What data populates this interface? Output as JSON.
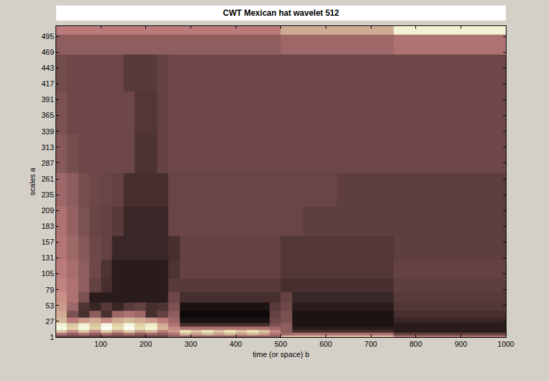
{
  "chart_data": {
    "type": "heatmap",
    "title": "CWT Mexican hat wavelet 512",
    "x_label": "time (or space) b",
    "y_label": "scales a",
    "color": "pink",
    "xlim": [
      1,
      1000
    ],
    "ylim": [
      1,
      512
    ],
    "xticks": [
      100,
      200,
      300,
      400,
      500,
      600,
      700,
      800,
      900,
      1000
    ],
    "yticks": [
      1,
      27,
      53,
      79,
      105,
      131,
      157,
      183,
      209,
      235,
      261,
      287,
      313,
      339,
      365,
      391,
      417,
      443,
      469,
      495
    ],
    "zlim": [
      0,
      1
    ],
    "x": [
      12.5,
      37.5,
      62.5,
      87.5,
      112.5,
      137.5,
      162.5,
      187.5,
      212.5,
      237.5,
      262.5,
      287.5,
      312.5,
      337.5,
      362.5,
      387.5,
      412.5,
      437.5,
      462.5,
      487.5,
      512.5,
      537.5,
      562.5,
      587.5,
      612.5,
      637.5,
      662.5,
      687.5,
      712.5,
      737.5,
      762.5,
      787.5,
      812.5,
      837.5,
      862.5,
      887.5,
      912.5,
      937.5,
      962.5,
      987.5
    ],
    "y": [
      2,
      6,
      10,
      15,
      21,
      28,
      38,
      50,
      65,
      85,
      110,
      145,
      190,
      240,
      300,
      370,
      440,
      490,
      505
    ],
    "z": [
      [
        0.1,
        0.1,
        0.1,
        0.1,
        0.1,
        0.1,
        0.1,
        0.1,
        0.1,
        0.1,
        0.2,
        0.2,
        0.2,
        0.2,
        0.2,
        0.2,
        0.2,
        0.2,
        0.2,
        0.2,
        0.55,
        0.55,
        0.55,
        0.55,
        0.55,
        0.55,
        0.55,
        0.55,
        0.55,
        0.55,
        0.3,
        0.3,
        0.3,
        0.3,
        0.3,
        0.3,
        0.3,
        0.3,
        0.3,
        0.3
      ],
      [
        0.3,
        0.2,
        0.3,
        0.2,
        0.3,
        0.2,
        0.3,
        0.2,
        0.25,
        0.2,
        0.3,
        0.55,
        0.45,
        0.55,
        0.45,
        0.55,
        0.45,
        0.55,
        0.45,
        0.3,
        0.25,
        0.3,
        0.3,
        0.3,
        0.3,
        0.3,
        0.3,
        0.3,
        0.3,
        0.3,
        0.1,
        0.1,
        0.1,
        0.1,
        0.1,
        0.1,
        0.1,
        0.1,
        0.1,
        0.1
      ],
      [
        0.6,
        0.4,
        0.6,
        0.4,
        0.65,
        0.45,
        0.65,
        0.45,
        0.55,
        0.35,
        0.45,
        0.75,
        0.6,
        0.75,
        0.6,
        0.75,
        0.6,
        0.75,
        0.6,
        0.4,
        0.2,
        0.05,
        0.05,
        0.05,
        0.05,
        0.05,
        0.05,
        0.05,
        0.05,
        0.05,
        0.03,
        0.03,
        0.03,
        0.03,
        0.03,
        0.03,
        0.03,
        0.03,
        0.03,
        0.03
      ],
      [
        0.9,
        0.65,
        0.9,
        0.65,
        0.95,
        0.7,
        0.95,
        0.7,
        0.85,
        0.55,
        0.4,
        0.3,
        0.3,
        0.3,
        0.3,
        0.3,
        0.3,
        0.3,
        0.3,
        0.25,
        0.2,
        0.03,
        0.03,
        0.03,
        0.03,
        0.03,
        0.03,
        0.03,
        0.03,
        0.03,
        0.03,
        0.03,
        0.03,
        0.03,
        0.03,
        0.03,
        0.03,
        0.03,
        0.03,
        0.03
      ],
      [
        0.85,
        0.6,
        0.85,
        0.6,
        0.9,
        0.65,
        0.9,
        0.65,
        0.8,
        0.5,
        0.3,
        0.05,
        0.05,
        0.05,
        0.05,
        0.05,
        0.05,
        0.05,
        0.05,
        0.15,
        0.2,
        0.02,
        0.02,
        0.02,
        0.02,
        0.02,
        0.02,
        0.02,
        0.02,
        0.02,
        0.03,
        0.03,
        0.03,
        0.03,
        0.03,
        0.03,
        0.03,
        0.03,
        0.03,
        0.03
      ],
      [
        0.55,
        0.35,
        0.45,
        0.5,
        0.4,
        0.5,
        0.55,
        0.5,
        0.45,
        0.35,
        0.25,
        0.02,
        0.02,
        0.02,
        0.02,
        0.02,
        0.02,
        0.02,
        0.02,
        0.12,
        0.15,
        0.02,
        0.02,
        0.02,
        0.02,
        0.02,
        0.02,
        0.02,
        0.02,
        0.02,
        0.04,
        0.04,
        0.04,
        0.04,
        0.04,
        0.04,
        0.04,
        0.04,
        0.04,
        0.04
      ],
      [
        0.5,
        0.15,
        0.05,
        0.2,
        0.05,
        0.25,
        0.3,
        0.25,
        0.05,
        0.1,
        0.2,
        0.01,
        0.01,
        0.01,
        0.01,
        0.01,
        0.01,
        0.01,
        0.01,
        0.1,
        0.15,
        0.02,
        0.02,
        0.02,
        0.02,
        0.02,
        0.02,
        0.02,
        0.02,
        0.02,
        0.05,
        0.05,
        0.05,
        0.05,
        0.05,
        0.05,
        0.05,
        0.05,
        0.05,
        0.05
      ],
      [
        0.45,
        0.25,
        0.06,
        0.04,
        0.08,
        0.04,
        0.08,
        0.1,
        0.05,
        0.06,
        0.15,
        0.02,
        0.02,
        0.02,
        0.02,
        0.02,
        0.02,
        0.02,
        0.02,
        0.08,
        0.12,
        0.03,
        0.03,
        0.03,
        0.03,
        0.03,
        0.03,
        0.03,
        0.03,
        0.03,
        0.07,
        0.07,
        0.07,
        0.07,
        0.07,
        0.07,
        0.07,
        0.07,
        0.07,
        0.07
      ],
      [
        0.42,
        0.3,
        0.15,
        0.03,
        0.03,
        0.03,
        0.03,
        0.03,
        0.03,
        0.03,
        0.12,
        0.05,
        0.05,
        0.05,
        0.05,
        0.05,
        0.05,
        0.05,
        0.05,
        0.05,
        0.1,
        0.04,
        0.04,
        0.04,
        0.04,
        0.04,
        0.04,
        0.04,
        0.04,
        0.04,
        0.08,
        0.08,
        0.08,
        0.08,
        0.08,
        0.08,
        0.08,
        0.08,
        0.08,
        0.08
      ],
      [
        0.38,
        0.3,
        0.2,
        0.1,
        0.05,
        0.03,
        0.03,
        0.03,
        0.03,
        0.03,
        0.08,
        0.08,
        0.08,
        0.08,
        0.08,
        0.08,
        0.08,
        0.08,
        0.08,
        0.08,
        0.05,
        0.05,
        0.05,
        0.05,
        0.05,
        0.05,
        0.05,
        0.05,
        0.05,
        0.05,
        0.09,
        0.09,
        0.09,
        0.09,
        0.09,
        0.09,
        0.09,
        0.09,
        0.09,
        0.09
      ],
      [
        0.35,
        0.28,
        0.2,
        0.12,
        0.06,
        0.03,
        0.03,
        0.03,
        0.03,
        0.03,
        0.06,
        0.1,
        0.1,
        0.1,
        0.1,
        0.1,
        0.1,
        0.1,
        0.1,
        0.1,
        0.07,
        0.07,
        0.07,
        0.07,
        0.07,
        0.07,
        0.07,
        0.07,
        0.07,
        0.07,
        0.1,
        0.1,
        0.1,
        0.1,
        0.1,
        0.1,
        0.1,
        0.1,
        0.1,
        0.1
      ],
      [
        0.32,
        0.25,
        0.18,
        0.12,
        0.1,
        0.04,
        0.04,
        0.04,
        0.04,
        0.04,
        0.05,
        0.1,
        0.1,
        0.1,
        0.1,
        0.1,
        0.1,
        0.1,
        0.1,
        0.1,
        0.07,
        0.07,
        0.07,
        0.07,
        0.07,
        0.07,
        0.07,
        0.07,
        0.07,
        0.07,
        0.09,
        0.09,
        0.09,
        0.09,
        0.09,
        0.09,
        0.09,
        0.09,
        0.09,
        0.09
      ],
      [
        0.3,
        0.22,
        0.15,
        0.11,
        0.1,
        0.08,
        0.04,
        0.04,
        0.04,
        0.04,
        0.11,
        0.11,
        0.11,
        0.11,
        0.11,
        0.11,
        0.11,
        0.11,
        0.11,
        0.11,
        0.11,
        0.11,
        0.09,
        0.09,
        0.09,
        0.09,
        0.09,
        0.09,
        0.09,
        0.09,
        0.09,
        0.09,
        0.09,
        0.09,
        0.09,
        0.09,
        0.09,
        0.09,
        0.09,
        0.09
      ],
      [
        0.25,
        0.2,
        0.14,
        0.12,
        0.11,
        0.1,
        0.05,
        0.05,
        0.05,
        0.05,
        0.11,
        0.11,
        0.11,
        0.11,
        0.11,
        0.11,
        0.11,
        0.11,
        0.11,
        0.11,
        0.11,
        0.11,
        0.11,
        0.11,
        0.11,
        0.09,
        0.09,
        0.09,
        0.09,
        0.09,
        0.09,
        0.09,
        0.09,
        0.09,
        0.09,
        0.09,
        0.09,
        0.09,
        0.09,
        0.09
      ],
      [
        0.18,
        0.14,
        0.12,
        0.12,
        0.12,
        0.12,
        0.12,
        0.06,
        0.06,
        0.1,
        0.12,
        0.12,
        0.12,
        0.12,
        0.12,
        0.12,
        0.12,
        0.12,
        0.12,
        0.12,
        0.12,
        0.12,
        0.12,
        0.12,
        0.12,
        0.12,
        0.12,
        0.12,
        0.12,
        0.12,
        0.12,
        0.12,
        0.12,
        0.12,
        0.12,
        0.12,
        0.12,
        0.12,
        0.12,
        0.12
      ],
      [
        0.15,
        0.12,
        0.12,
        0.12,
        0.12,
        0.12,
        0.12,
        0.07,
        0.07,
        0.1,
        0.12,
        0.12,
        0.12,
        0.12,
        0.12,
        0.12,
        0.12,
        0.12,
        0.12,
        0.12,
        0.12,
        0.12,
        0.12,
        0.12,
        0.12,
        0.12,
        0.12,
        0.12,
        0.12,
        0.12,
        0.12,
        0.12,
        0.12,
        0.12,
        0.12,
        0.12,
        0.12,
        0.12,
        0.12,
        0.12
      ],
      [
        0.13,
        0.12,
        0.12,
        0.12,
        0.12,
        0.12,
        0.08,
        0.08,
        0.08,
        0.1,
        0.12,
        0.12,
        0.12,
        0.12,
        0.12,
        0.12,
        0.12,
        0.12,
        0.12,
        0.12,
        0.12,
        0.12,
        0.12,
        0.12,
        0.12,
        0.12,
        0.12,
        0.12,
        0.12,
        0.12,
        0.12,
        0.12,
        0.12,
        0.12,
        0.12,
        0.12,
        0.12,
        0.12,
        0.12,
        0.12
      ],
      [
        0.2,
        0.2,
        0.2,
        0.2,
        0.2,
        0.2,
        0.2,
        0.2,
        0.2,
        0.2,
        0.2,
        0.2,
        0.2,
        0.2,
        0.2,
        0.2,
        0.2,
        0.2,
        0.2,
        0.2,
        0.25,
        0.25,
        0.25,
        0.25,
        0.25,
        0.25,
        0.25,
        0.25,
        0.25,
        0.25,
        0.3,
        0.3,
        0.3,
        0.3,
        0.3,
        0.3,
        0.3,
        0.3,
        0.3,
        0.3
      ],
      [
        0.35,
        0.35,
        0.35,
        0.35,
        0.35,
        0.35,
        0.35,
        0.35,
        0.35,
        0.35,
        0.35,
        0.35,
        0.35,
        0.35,
        0.35,
        0.35,
        0.35,
        0.35,
        0.35,
        0.35,
        0.5,
        0.5,
        0.5,
        0.5,
        0.5,
        0.5,
        0.5,
        0.5,
        0.5,
        0.5,
        0.85,
        0.85,
        0.85,
        0.85,
        0.85,
        0.85,
        0.85,
        0.85,
        0.85,
        0.85
      ]
    ]
  }
}
